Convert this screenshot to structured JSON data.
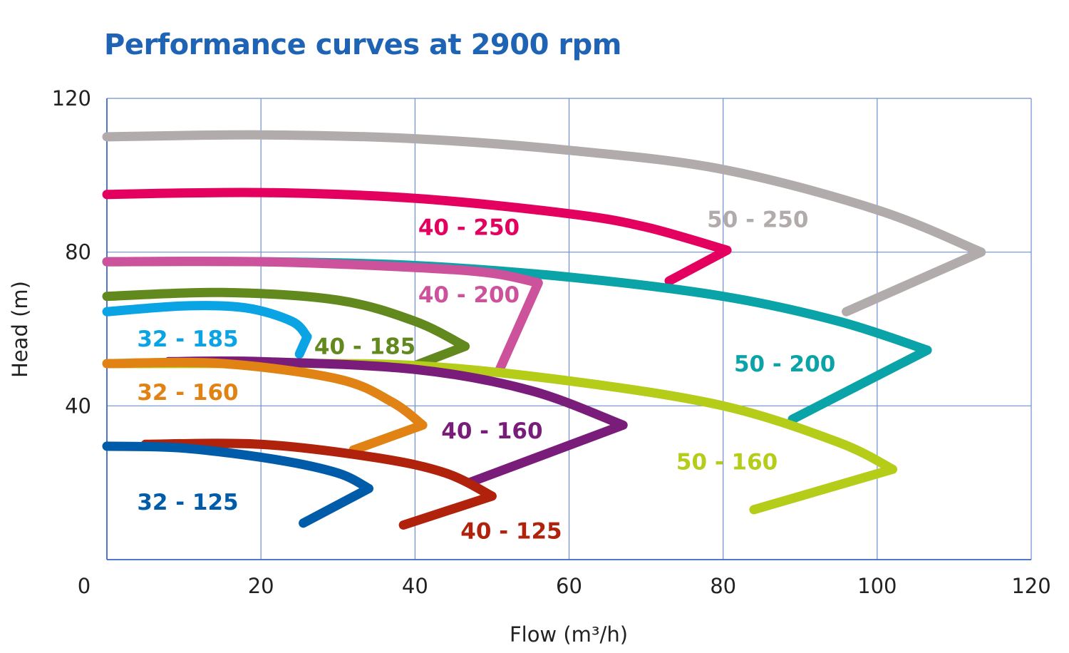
{
  "chart_data": {
    "type": "line",
    "title": "Performance curves at 2900 rpm",
    "xlabel": "Flow (m³/h)",
    "ylabel": "Head (m)",
    "xlim": [
      0,
      120
    ],
    "ylim": [
      0,
      120
    ],
    "xticks": [
      "0",
      "20",
      "40",
      "60",
      "80",
      "100",
      "120"
    ],
    "yticks": [
      "40",
      "80",
      "120"
    ],
    "grid": true,
    "series": [
      {
        "name": "50 - 250",
        "color": "#b1abab",
        "x": [
          0,
          20,
          40,
          60,
          80,
          100,
          113.5,
          96
        ],
        "y": [
          110,
          110.5,
          109.5,
          106.5,
          101.5,
          91,
          80,
          64.5
        ]
      },
      {
        "name": "40 - 250",
        "color": "#e3005f",
        "x": [
          0,
          20,
          40,
          60,
          70,
          80.5,
          73
        ],
        "y": [
          95,
          95.5,
          94,
          90,
          86.5,
          80.5,
          72.5
        ]
      },
      {
        "name": "50 - 200",
        "color": "#0aa3a8",
        "x": [
          0,
          20,
          40,
          60,
          80,
          95,
          106.5,
          89
        ],
        "y": [
          77.5,
          77.5,
          76.5,
          73.5,
          68.5,
          62,
          54.5,
          36.5
        ]
      },
      {
        "name": "40 - 200",
        "color": "#cc539b",
        "x": [
          0,
          20,
          40,
          50,
          56,
          51
        ],
        "y": [
          77.5,
          77.5,
          76,
          74.5,
          72,
          49.5
        ]
      },
      {
        "name": "40 - 185",
        "color": "#62891d",
        "x": [
          0,
          15,
          30,
          40,
          46.5,
          40
        ],
        "y": [
          68.5,
          69.5,
          67.5,
          62,
          55.5,
          50.5
        ]
      },
      {
        "name": "32 - 185",
        "color": "#0aa3e4",
        "x": [
          0,
          10,
          18,
          24,
          26,
          25
        ],
        "y": [
          64.5,
          66,
          65.5,
          62,
          58,
          53.5
        ]
      },
      {
        "name": "50 - 160",
        "color": "#b5cc18",
        "x": [
          0,
          20,
          40,
          60,
          80,
          95,
          102,
          84
        ],
        "y": [
          51,
          51,
          50.5,
          46.5,
          40,
          30.5,
          23.5,
          13
        ]
      },
      {
        "name": "40 - 160",
        "color": "#7a1c7a",
        "x": [
          8,
          20,
          40,
          55,
          67,
          47
        ],
        "y": [
          51.5,
          51.5,
          49.5,
          44,
          35,
          20
        ]
      },
      {
        "name": "32 - 160",
        "color": "#e08214",
        "x": [
          0,
          15,
          30,
          37,
          41,
          32
        ],
        "y": [
          51,
          51,
          47,
          41,
          35,
          28.5
        ]
      },
      {
        "name": "40 - 125",
        "color": "#b0220c",
        "x": [
          5,
          20,
          35,
          44,
          50,
          38.5
        ],
        "y": [
          30,
          30,
          26.5,
          22.5,
          16.5,
          9
        ]
      },
      {
        "name": "32 - 125",
        "color": "#005ba8",
        "x": [
          0,
          10,
          22,
          30,
          34,
          25.5
        ],
        "y": [
          29.5,
          29,
          26,
          22.5,
          18.5,
          9.5
        ]
      }
    ],
    "labels": [
      {
        "text": "50 - 250",
        "x": 84.5,
        "y": 86.5,
        "color": "#b1abab"
      },
      {
        "text": "40 - 250",
        "x": 47,
        "y": 84.5,
        "color": "#e3005f"
      },
      {
        "text": "40 - 200",
        "x": 47,
        "y": 67,
        "color": "#cc539b"
      },
      {
        "text": "32 - 185",
        "x": 10.5,
        "y": 55.5,
        "color": "#0aa3e4"
      },
      {
        "text": "40 - 185",
        "x": 33.5,
        "y": 53.5,
        "color": "#62891d"
      },
      {
        "text": "50 - 200",
        "x": 88,
        "y": 49,
        "color": "#0aa3a8"
      },
      {
        "text": "32 - 160",
        "x": 10.5,
        "y": 41.5,
        "color": "#e08214"
      },
      {
        "text": "40 - 160",
        "x": 50,
        "y": 31.5,
        "color": "#7a1c7a"
      },
      {
        "text": "50 - 160",
        "x": 80.5,
        "y": 23.5,
        "color": "#b5cc18"
      },
      {
        "text": "32 - 125",
        "x": 10.5,
        "y": 13,
        "color": "#005ba8"
      },
      {
        "text": "40 - 125",
        "x": 52.5,
        "y": 5.5,
        "color": "#b0220c"
      }
    ]
  }
}
